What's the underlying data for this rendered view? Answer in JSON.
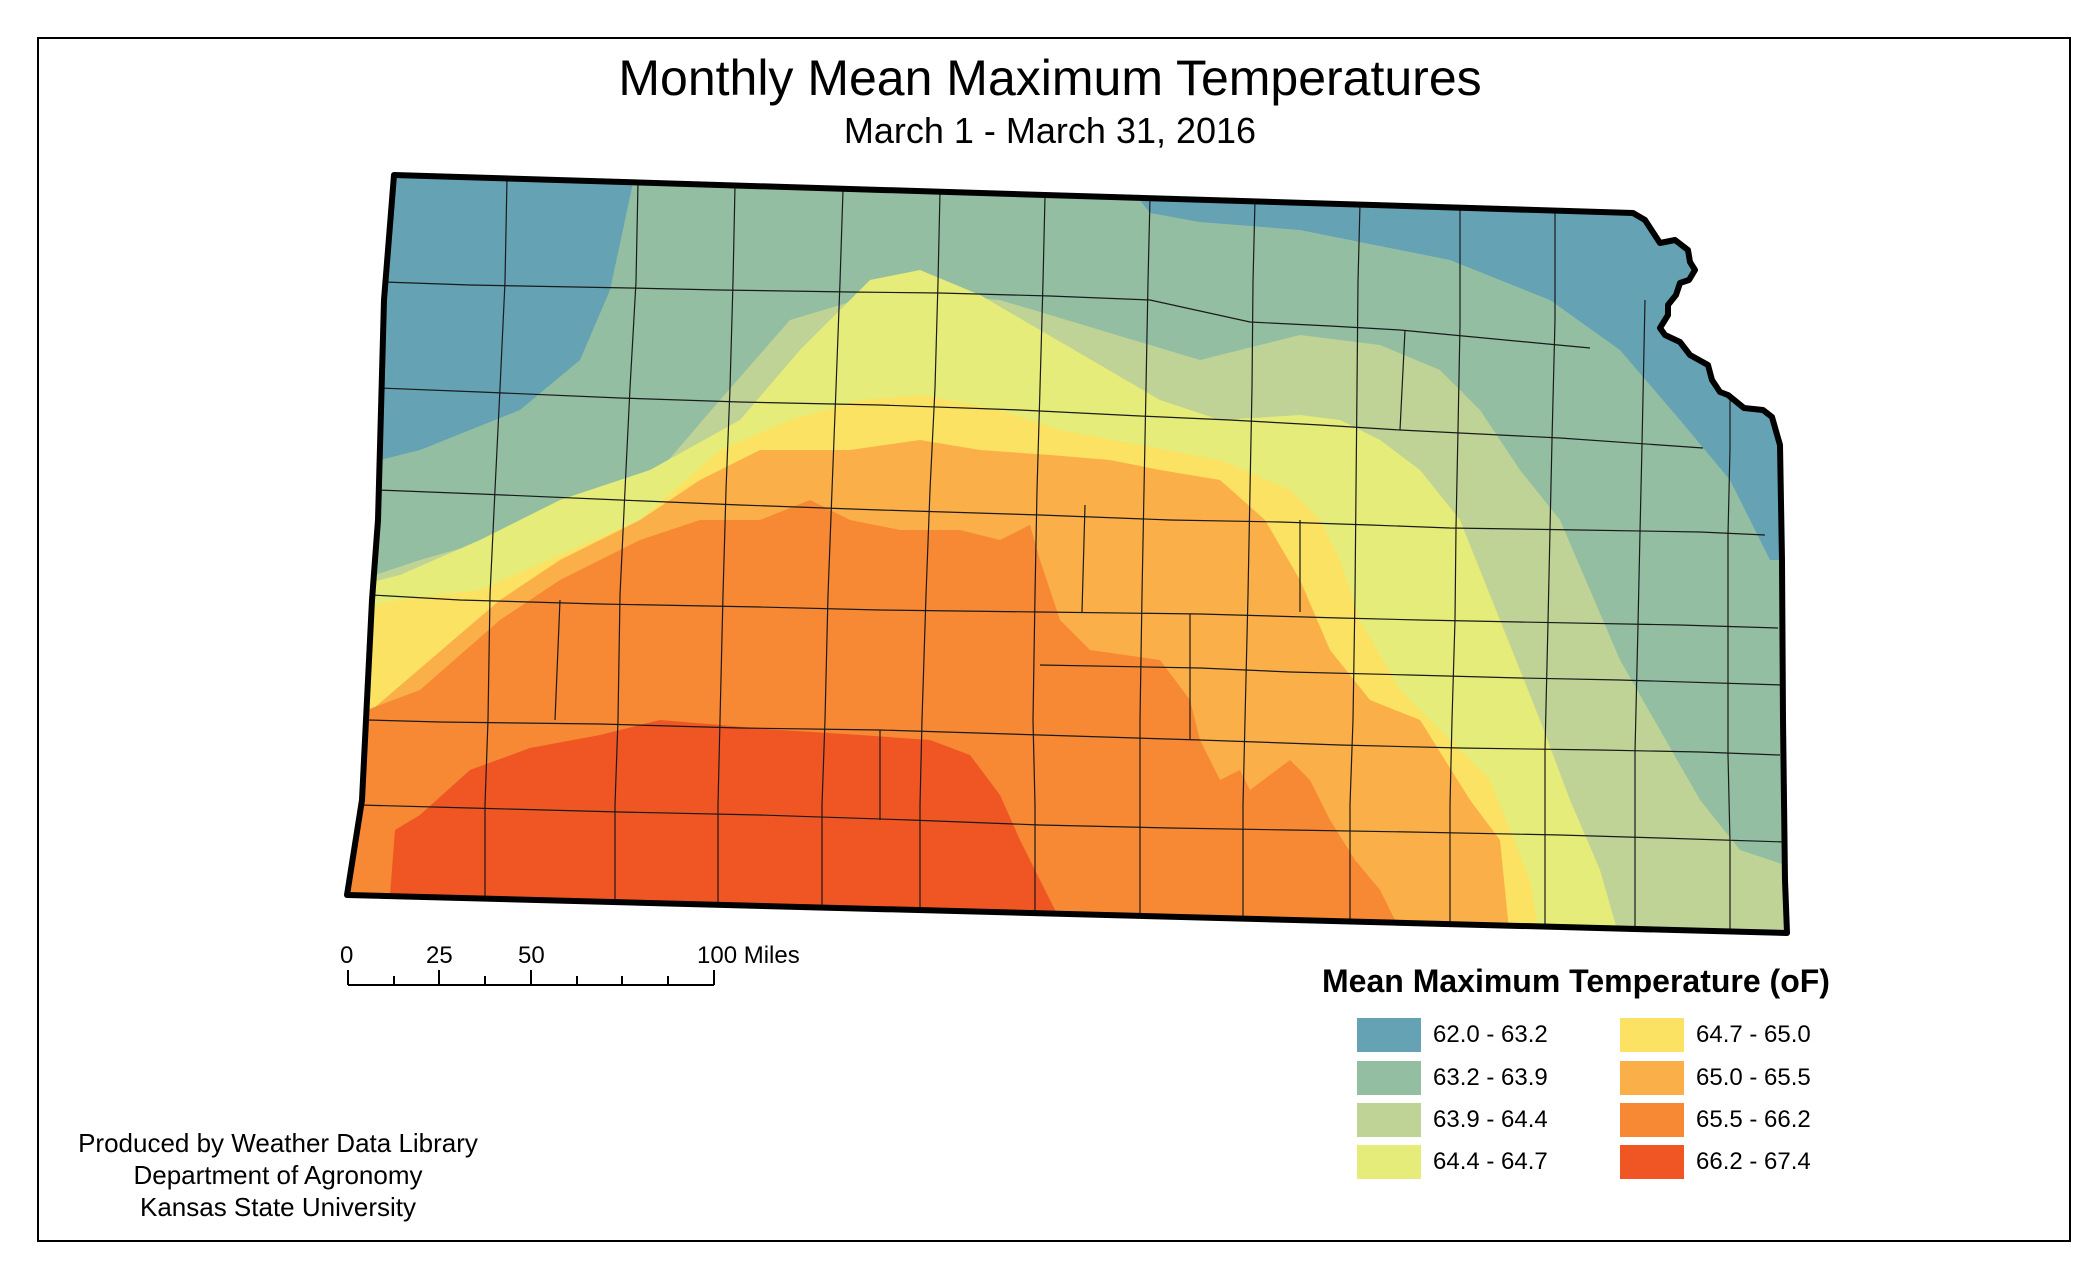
{
  "title": "Monthly Mean Maximum Temperatures",
  "subtitle": "March 1 - March 31, 2016",
  "scale_bar": {
    "labels": [
      "0",
      "25",
      "50",
      "100 Miles"
    ]
  },
  "legend": {
    "title": "Mean Maximum Temperature (oF)",
    "items": [
      {
        "label": "62.0 - 63.2",
        "color": "#64a2b4"
      },
      {
        "label": "63.2 - 63.9",
        "color": "#93bea1"
      },
      {
        "label": "63.9 - 64.4",
        "color": "#bfd396"
      },
      {
        "label": "64.4 - 64.7",
        "color": "#e6ec79"
      },
      {
        "label": "64.7 - 65.0",
        "color": "#fbe262"
      },
      {
        "label": "65.0 - 65.5",
        "color": "#fbaf48"
      },
      {
        "label": "65.5 - 66.2",
        "color": "#f78834"
      },
      {
        "label": "66.2 - 67.4",
        "color": "#f05524"
      }
    ]
  },
  "credits": {
    "line1": "Produced by Weather Data Library",
    "line2": "Department of Agronomy",
    "line3": "Kansas State University"
  }
}
